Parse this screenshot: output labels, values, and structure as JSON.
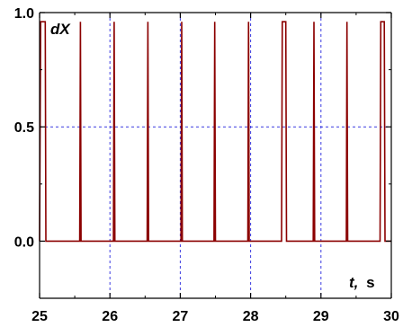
{
  "chart_data": {
    "type": "line",
    "title": "",
    "ylabel": "dX",
    "xlabel_var": "t,",
    "xlabel_unit": "s",
    "xlim": [
      25,
      30
    ],
    "ylim": [
      -0.25,
      1.0
    ],
    "x_ticks": [
      25,
      26,
      27,
      28,
      29,
      30
    ],
    "x_tick_labels": [
      "25",
      "26",
      "27",
      "28",
      "29",
      "30"
    ],
    "y_ticks": [
      0.0,
      0.5,
      1.0
    ],
    "y_tick_labels": [
      "0.0",
      "0.5",
      "1.0"
    ],
    "grid": {
      "vertical_dashed_at_x": [
        26,
        27,
        28,
        29
      ],
      "horizontal_dashed_at_y": [
        0.5
      ]
    },
    "colors": {
      "series": "#8b0000",
      "grid": "#3a3ae0",
      "axis": "#000000"
    },
    "series": [
      {
        "x": [
          25.0,
          25.015,
          25.025,
          25.08,
          25.09,
          25.1,
          25.57,
          25.58,
          25.59,
          25.6,
          26.05,
          26.06,
          26.07,
          26.08,
          26.53,
          26.54,
          26.55,
          26.56,
          27.01,
          27.02,
          27.03,
          27.04,
          27.48,
          27.49,
          27.5,
          27.51,
          27.96,
          27.97,
          27.98,
          27.99,
          28.44,
          28.45,
          28.5,
          28.51,
          28.89,
          28.9,
          28.91,
          28.92,
          29.36,
          29.37,
          29.38,
          29.39,
          29.84,
          29.85,
          29.9,
          29.91,
          30.0
        ],
        "y": [
          0.0,
          0.96,
          0.96,
          0.96,
          0.0,
          0.0,
          0.0,
          0.96,
          0.0,
          0.0,
          0.0,
          0.96,
          0.0,
          0.0,
          0.0,
          0.96,
          0.0,
          0.0,
          0.0,
          0.96,
          0.0,
          0.0,
          0.0,
          0.96,
          0.0,
          0.0,
          0.0,
          0.96,
          0.0,
          0.0,
          0.0,
          0.96,
          0.96,
          0.0,
          0.0,
          0.96,
          0.0,
          0.0,
          0.0,
          0.96,
          0.0,
          0.0,
          0.0,
          0.96,
          0.96,
          0.0,
          0.0
        ]
      }
    ]
  }
}
